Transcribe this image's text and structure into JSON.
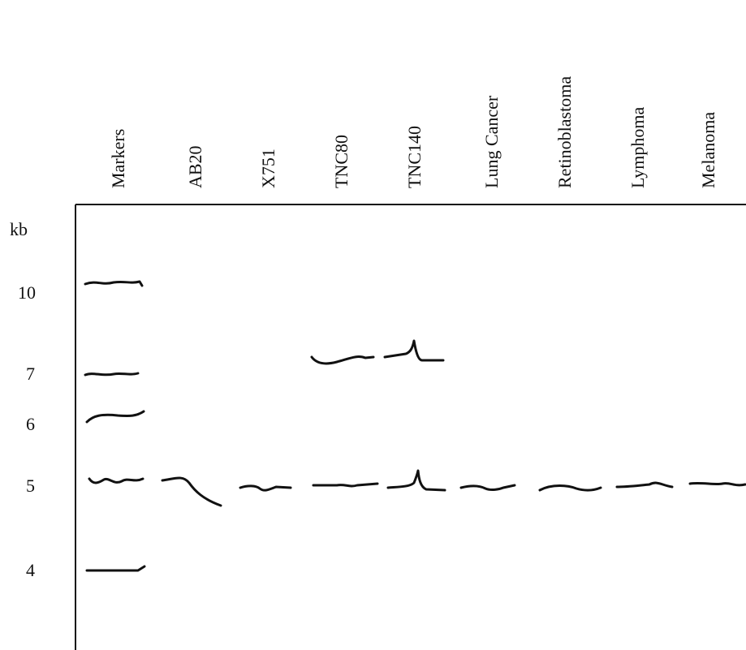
{
  "lanes": [
    "Markers",
    "AB20",
    "X751",
    "TNC80",
    "TNC140",
    "Lung Cancer",
    "Retinoblastoma",
    "Lymphoma",
    "Melanoma"
  ],
  "size_axis": {
    "unit": "kb",
    "labels": [
      "10",
      "7",
      "6",
      "5",
      "4"
    ]
  }
}
